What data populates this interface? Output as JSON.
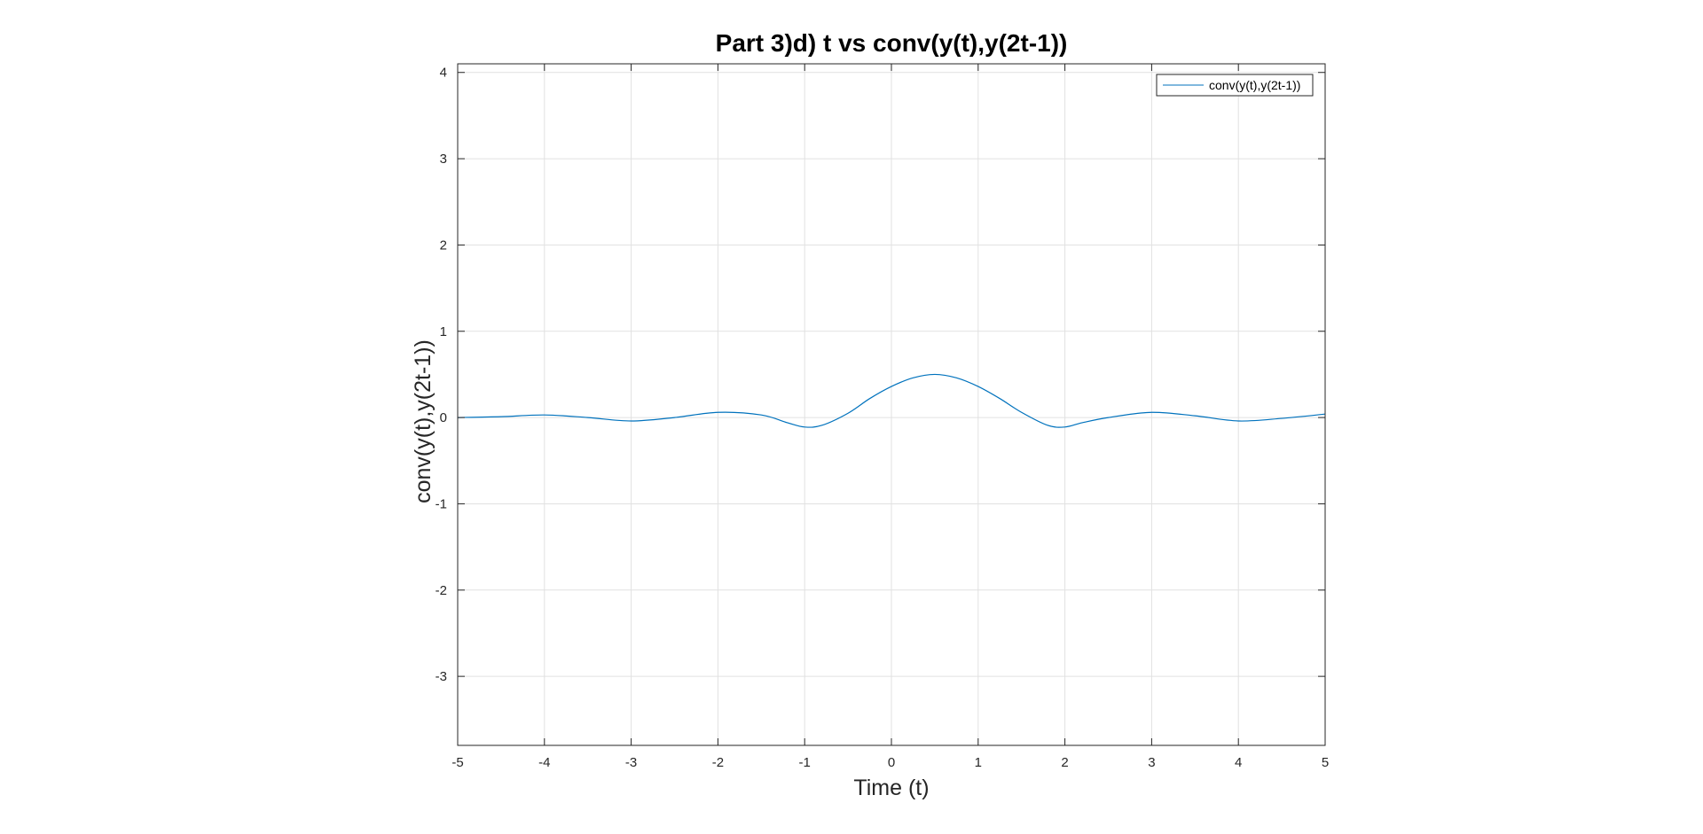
{
  "chart_data": {
    "type": "line",
    "title": "Part 3)d) t vs conv(y(t),y(2t-1))",
    "xlabel": "Time (t)",
    "ylabel": "conv(y(t),y(2t-1))",
    "xlim": [
      -5,
      5
    ],
    "ylim": [
      -3.8,
      4.1
    ],
    "xticks": [
      -5,
      -4,
      -3,
      -2,
      -1,
      0,
      1,
      2,
      3,
      4,
      5
    ],
    "yticks": [
      -3,
      -2,
      -1,
      0,
      1,
      2,
      3,
      4
    ],
    "xtick_labels": [
      "-5",
      "-4",
      "-3",
      "-2",
      "-1",
      "0",
      "1",
      "2",
      "3",
      "4",
      "5"
    ],
    "ytick_labels": [
      "-3",
      "-2",
      "-1",
      "0",
      "1",
      "2",
      "3",
      "4"
    ],
    "grid": true,
    "legend_position": "top-right",
    "series": [
      {
        "name": "conv(y(t),y(2t-1))",
        "color": "#0072BD",
        "x": [
          -5,
          -4.5,
          -4,
          -3.5,
          -3,
          -2.5,
          -2,
          -1.5,
          -1.2,
          -1,
          -0.8,
          -0.5,
          -0.25,
          0,
          0.25,
          0.5,
          0.75,
          1,
          1.25,
          1.5,
          1.8,
          2,
          2.2,
          2.5,
          3,
          3.5,
          4,
          4.5,
          5
        ],
        "y": [
          0.0,
          0.01,
          0.03,
          0.0,
          -0.04,
          0.0,
          0.06,
          0.03,
          -0.06,
          -0.11,
          -0.09,
          0.05,
          0.22,
          0.36,
          0.46,
          0.5,
          0.46,
          0.36,
          0.22,
          0.06,
          -0.09,
          -0.11,
          -0.06,
          0.0,
          0.06,
          0.02,
          -0.04,
          -0.01,
          0.04
        ]
      }
    ]
  }
}
